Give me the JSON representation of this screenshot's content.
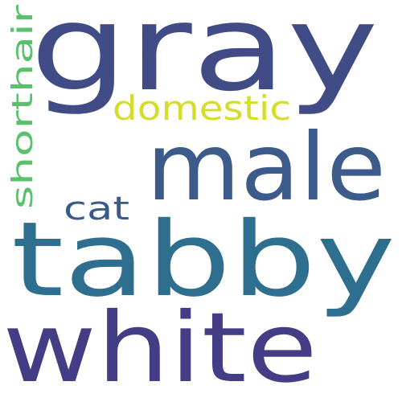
{
  "word_cloud": {
    "words": [
      {
        "text": "gray",
        "color": "#414c86",
        "orientation": "horizontal"
      },
      {
        "text": "tabby",
        "color": "#2e6e8e",
        "orientation": "horizontal"
      },
      {
        "text": "white",
        "color": "#423d85",
        "orientation": "horizontal"
      },
      {
        "text": "male",
        "color": "#3c5a8a",
        "orientation": "horizontal"
      },
      {
        "text": "domestic",
        "color": "#d6dc2a",
        "orientation": "horizontal"
      },
      {
        "text": "cat",
        "color": "#3a5a8c",
        "orientation": "horizontal"
      },
      {
        "text": "shorthair",
        "color": "#58c16b",
        "orientation": "vertical"
      }
    ]
  }
}
